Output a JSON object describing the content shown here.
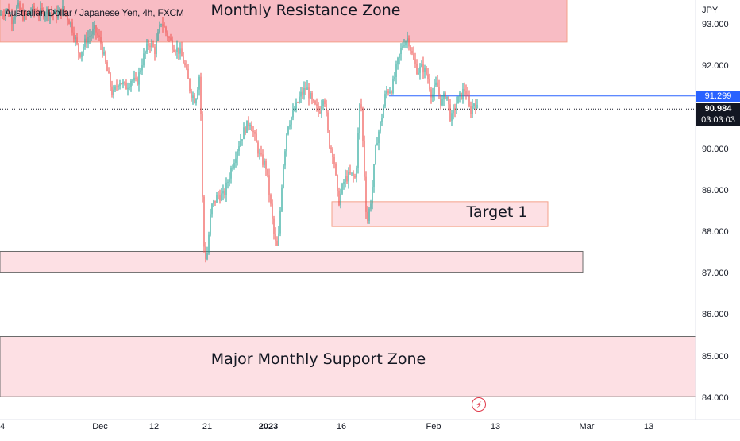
{
  "title": "Australian Dollar / Japanese Yen, 4h, FXCM",
  "axis_unit": "JPY",
  "current_price": "90.984",
  "countdown": "03:03:03",
  "line_price": "91.299",
  "zones": {
    "resistance": "Monthly Resistance Zone",
    "target": "Target 1",
    "support": "Major Monthly Support Zone"
  },
  "icons": {
    "event": "lightning-icon"
  },
  "colors": {
    "up": "#26a69a",
    "down": "#ef5350",
    "zone_red": "#f8bcc4",
    "zone_pink": "#fde0e4",
    "line_blue": "#2962ff",
    "price_tag": "#131722"
  },
  "chart_data": {
    "type": "candlestick",
    "title": "Australian Dollar / Japanese Yen, 4h, FXCM",
    "ylabel": "JPY",
    "ylim": [
      83.8,
      93.5
    ],
    "y_ticks": [
      "93.000",
      "92.000",
      "91.000",
      "90.000",
      "89.000",
      "88.000",
      "87.000",
      "86.000",
      "85.000",
      "84.000"
    ],
    "x_ticks": [
      "4",
      "Dec",
      "12",
      "21",
      "2023",
      "16",
      "Feb",
      "13",
      "Mar",
      "13"
    ],
    "zones": [
      {
        "label": "Monthly Resistance Zone",
        "from": 92.6,
        "to": 93.5
      },
      {
        "label": "",
        "from": 87.05,
        "to": 87.55
      },
      {
        "label": "Target 1",
        "from": 88.15,
        "to": 88.75
      },
      {
        "label": "Major Monthly Support Zone",
        "from": 84.05,
        "to": 85.5
      }
    ],
    "horizontal_line": 91.299,
    "last_price": 90.984,
    "price_path": [
      [
        0,
        93.25
      ],
      [
        8,
        93.4
      ],
      [
        15,
        93.15
      ],
      [
        22,
        93.45
      ],
      [
        30,
        93.2
      ],
      [
        40,
        93.35
      ],
      [
        50,
        93.3
      ],
      [
        60,
        93.35
      ],
      [
        70,
        93.25
      ],
      [
        80,
        93.4
      ],
      [
        90,
        93.0
      ],
      [
        100,
        92.3
      ],
      [
        110,
        92.7
      ],
      [
        120,
        92.9
      ],
      [
        128,
        92.5
      ],
      [
        135,
        91.9
      ],
      [
        142,
        91.3
      ],
      [
        150,
        91.7
      ],
      [
        158,
        91.5
      ],
      [
        165,
        91.7
      ],
      [
        172,
        91.6
      ],
      [
        180,
        92.2
      ],
      [
        188,
        92.6
      ],
      [
        195,
        92.4
      ],
      [
        203,
        93.1
      ],
      [
        210,
        92.8
      ],
      [
        218,
        92.5
      ],
      [
        225,
        92.4
      ],
      [
        232,
        92.1
      ],
      [
        240,
        91.4
      ],
      [
        246,
        91.2
      ],
      [
        252,
        91.9
      ],
      [
        256,
        87.8
      ],
      [
        260,
        87.3
      ],
      [
        266,
        88.6
      ],
      [
        274,
        88.9
      ],
      [
        282,
        88.9
      ],
      [
        292,
        89.6
      ],
      [
        300,
        90.1
      ],
      [
        308,
        90.5
      ],
      [
        315,
        90.7
      ],
      [
        322,
        90.2
      ],
      [
        328,
        89.8
      ],
      [
        335,
        89.6
      ],
      [
        340,
        88.8
      ],
      [
        346,
        87.8
      ],
      [
        350,
        87.6
      ],
      [
        356,
        89.5
      ],
      [
        362,
        90.6
      ],
      [
        370,
        90.9
      ],
      [
        378,
        91.3
      ],
      [
        386,
        91.5
      ],
      [
        394,
        91.1
      ],
      [
        402,
        90.9
      ],
      [
        408,
        91.4
      ],
      [
        414,
        90.2
      ],
      [
        420,
        89.9
      ],
      [
        426,
        88.7
      ],
      [
        434,
        89.3
      ],
      [
        442,
        89.4
      ],
      [
        448,
        89.3
      ],
      [
        454,
        91.4
      ],
      [
        458,
        89.8
      ],
      [
        462,
        88.2
      ],
      [
        468,
        88.9
      ],
      [
        474,
        90.2
      ],
      [
        480,
        90.7
      ],
      [
        486,
        91.4
      ],
      [
        494,
        91.5
      ],
      [
        502,
        92.2
      ],
      [
        508,
        92.6
      ],
      [
        514,
        92.7
      ],
      [
        520,
        92.2
      ],
      [
        526,
        91.9
      ],
      [
        532,
        92.0
      ],
      [
        538,
        91.8
      ],
      [
        544,
        91.3
      ],
      [
        550,
        91.6
      ],
      [
        556,
        91.1
      ],
      [
        562,
        91.4
      ],
      [
        568,
        90.7
      ],
      [
        574,
        91.1
      ],
      [
        580,
        91.3
      ],
      [
        586,
        91.5
      ],
      [
        592,
        90.9
      ],
      [
        598,
        91.2
      ],
      [
        601,
        90.984
      ]
    ]
  }
}
